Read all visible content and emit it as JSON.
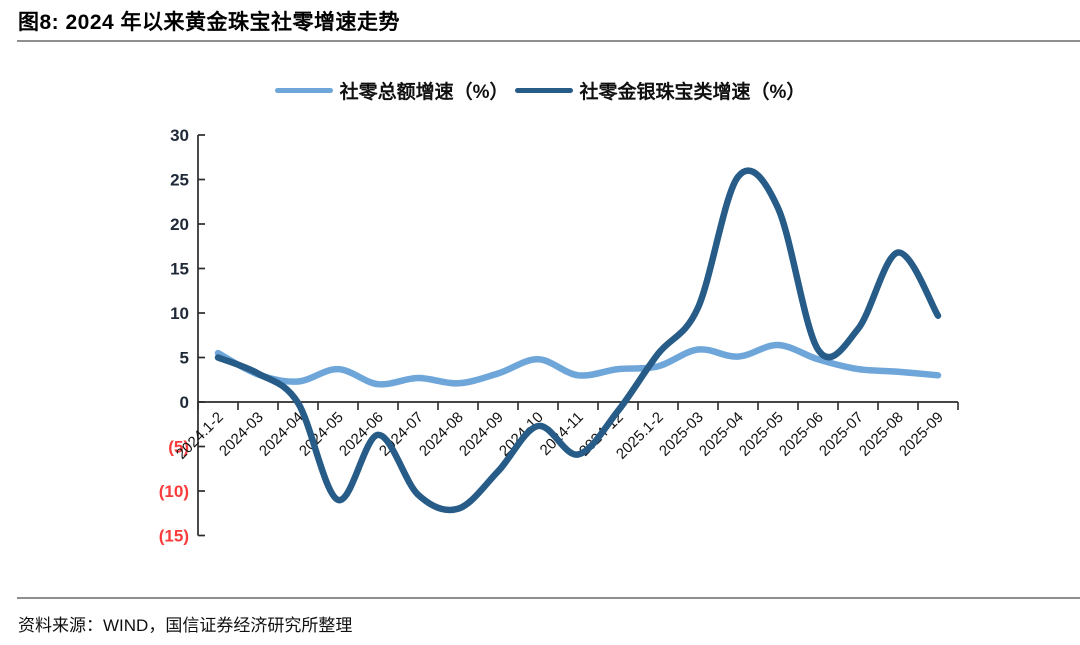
{
  "page": {
    "title": "图8: 2024 年以来黄金珠宝社零增速走势",
    "source": "资料来源：WIND，国信证券经济研究所整理"
  },
  "colors": {
    "light_blue": "#6ea6da",
    "dark_blue": "#265c87",
    "axis": "#2b2b2b",
    "ytick_positive": "#1f2937",
    "ytick_negative": "#f93b3b",
    "xtick": "#111111",
    "divider": "#8f8f8f"
  },
  "chart_data": {
    "type": "line",
    "title": "图8: 2024 年以来黄金珠宝社零增速走势",
    "xlabel": "",
    "ylabel": "",
    "grid": false,
    "legend_position": "top-center",
    "ylim": [
      -15,
      30
    ],
    "ytick_step": 5,
    "ytick_values": [
      30,
      25,
      20,
      15,
      10,
      5,
      0,
      -5,
      -10,
      -15
    ],
    "ytick_labels": [
      "30",
      "25",
      "20",
      "15",
      "10",
      "5",
      "0",
      "(5)",
      "(10)",
      "(15)"
    ],
    "negative_label_style": "red-parentheses",
    "categories": [
      "2024.1-2",
      "2024-03",
      "2024-04",
      "2024-05",
      "2024-06",
      "2024-07",
      "2024-08",
      "2024-09",
      "2024-10",
      "2024-11",
      "2024-12",
      "2025.1-2",
      "2025-03",
      "2025-04",
      "2025-05",
      "2025-06",
      "2025-07",
      "2025-08",
      "2025-09"
    ],
    "series": [
      {
        "name": "社零总额增速（%）",
        "color_key": "light_blue",
        "values": [
          5.5,
          3.1,
          2.3,
          3.7,
          2.0,
          2.7,
          2.1,
          3.2,
          4.8,
          3.0,
          3.7,
          4.0,
          5.9,
          5.1,
          6.4,
          4.8,
          3.7,
          3.4,
          3.0
        ]
      },
      {
        "name": "社零金银珠宝类增速（%）",
        "color_key": "dark_blue",
        "values": [
          5.0,
          3.2,
          -0.1,
          -11.0,
          -3.7,
          -10.4,
          -12.0,
          -7.8,
          -2.7,
          -5.9,
          -1.0,
          5.4,
          10.6,
          25.3,
          21.8,
          5.9,
          8.2,
          16.8,
          9.7
        ]
      }
    ]
  }
}
